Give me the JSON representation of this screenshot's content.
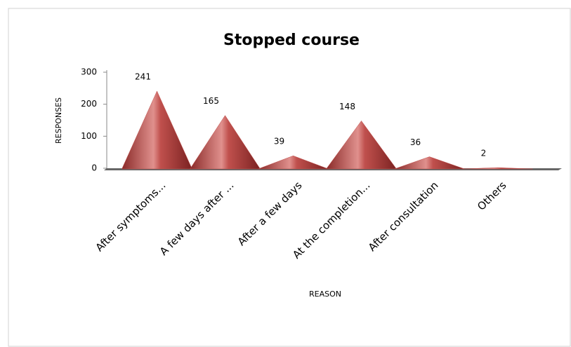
{
  "chart_data": {
    "type": "pyramid",
    "title": "Stopped course",
    "x_label": "REASON",
    "y_label": "RESPONSES",
    "categories": [
      "After symptoms...",
      "A few days after ...",
      "After a few days",
      "At the completion...",
      "After consultation",
      "Others"
    ],
    "values": [
      241,
      165,
      39,
      148,
      36,
      2
    ],
    "color": "#c0504d",
    "ylim": [
      0,
      300
    ],
    "yticks": [
      0,
      100,
      200,
      300
    ]
  }
}
